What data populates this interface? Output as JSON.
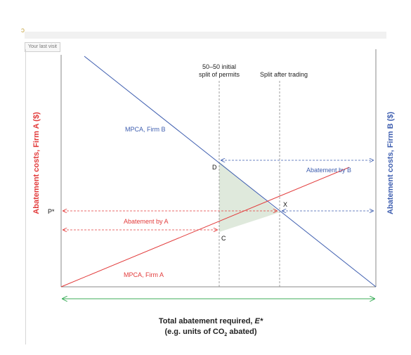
{
  "browser": {
    "tab_label": "Your last visit"
  },
  "labels": {
    "ylabel_a": "Abatement costs, Firm A ($)",
    "ylabel_b": "Abatement costs, Firm B ($)",
    "xlabel_line1": "Total abatement required, ",
    "xlabel_e": "E*",
    "xlabel_line2_pre": "(e.g. units of CO",
    "xlabel_line2_sub": "2",
    "xlabel_line2_post": " abated)",
    "initial_split_line1": "50–50 initial",
    "initial_split_line2": "split of permits",
    "split_after_trading": "Split after trading",
    "mpca_b": "MPCA, Firm B",
    "mpca_a": "MPCA, Firm A",
    "abatement_by_a": "Abatement by A",
    "abatement_by_b": "Abatement by B",
    "point_d": "D",
    "point_c": "C",
    "point_x": "X",
    "p_star": "P*"
  },
  "colors": {
    "firm_a": "#e23b3b",
    "firm_b": "#3f5fb0",
    "total": "#3cae5a",
    "shade": "#dfe9dc",
    "axis": "#888888"
  }
}
